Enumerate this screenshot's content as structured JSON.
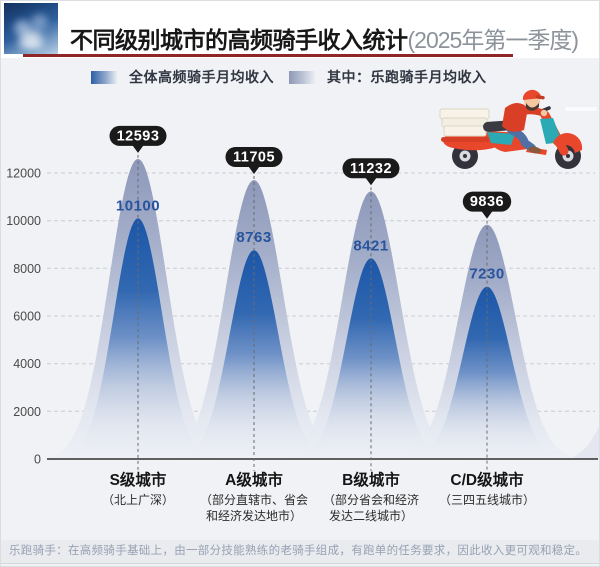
{
  "header": {
    "title_main": "不同级别城市的高频骑手收入统计",
    "title_paren": "(2025年第一季度)"
  },
  "legend": {
    "items": [
      {
        "label": "全体高频骑手月均收入",
        "color_from": "#2e5fa8",
        "color_to": "#e9edf4"
      },
      {
        "label": "其中：乐跑骑手月均收入",
        "color_from": "#8e99b6",
        "color_to": "#eceef4"
      }
    ]
  },
  "chart_data": {
    "type": "area",
    "shape": "bell-curves",
    "title": "不同级别城市的高频骑手收入统计(2025年第一季度)",
    "categories": [
      "S级城市",
      "A级城市",
      "B级城市",
      "C/D级城市"
    ],
    "category_sublabels": [
      [
        "（北上广深）"
      ],
      [
        "（部分直辖市、省会",
        "和经济发达地市）"
      ],
      [
        "（部分省会和经济",
        "发达二线城市）"
      ],
      [
        "（三四五线城市）"
      ]
    ],
    "series": [
      {
        "name": "全体高频骑手月均收入",
        "values": [
          12593,
          11705,
          11232,
          9836
        ],
        "style": "outer-gray-blue-bell",
        "value_label_style": "black-callout-bubble"
      },
      {
        "name": "其中：乐跑骑手月均收入",
        "values": [
          10100,
          8763,
          8421,
          7230
        ],
        "style": "inner-blue-bell",
        "value_label_style": "blue-bold-text"
      }
    ],
    "ylim": [
      0,
      12000
    ],
    "yticks": [
      0,
      2000,
      4000,
      6000,
      8000,
      10000,
      12000
    ],
    "grid": true,
    "legend_position": "top-left"
  },
  "colors": {
    "title_underline_red": "#8e2626",
    "callout_bg": "#1a1a1a",
    "callout_text": "#ffffff",
    "inner_value_text": "#27549e",
    "outer_bell_top": "#8893b6",
    "inner_bell_top": "#1b56a8",
    "footer_text": "#98a1b3",
    "scooter_red": "#e8472b",
    "scooter_teal": "#2ba9b5"
  },
  "footer": {
    "note": "乐跑骑手：在高频骑手基础上，由一部分技能熟练的老骑手组成，有跑单的任务要求，因此收入更可观和稳定。"
  }
}
